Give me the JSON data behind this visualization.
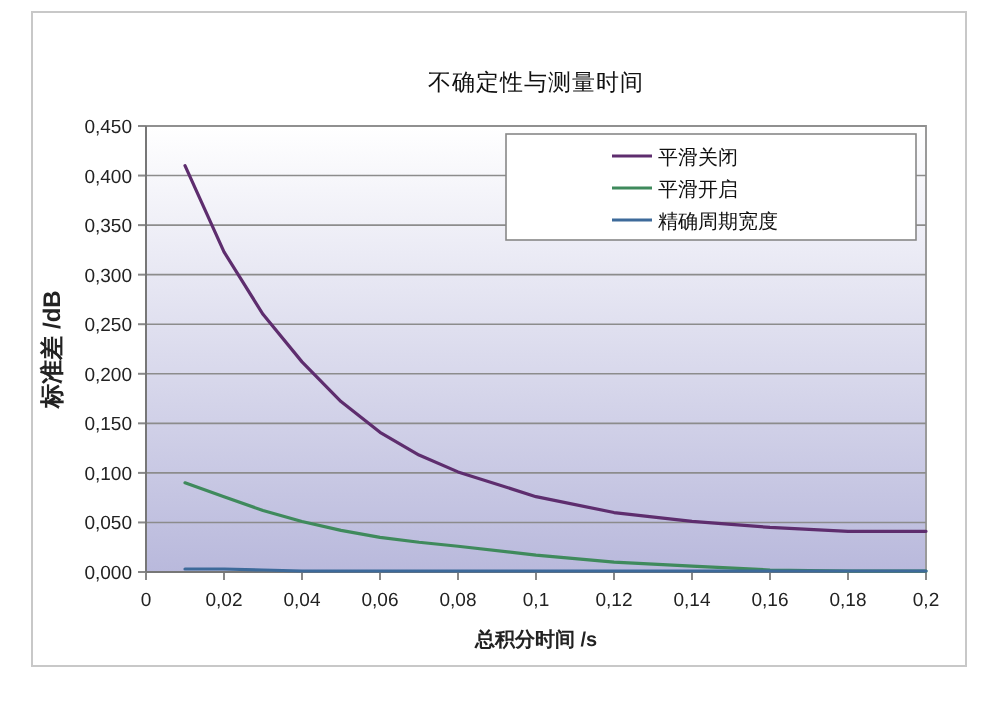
{
  "chart_data": {
    "type": "line",
    "title": "不确定性与测量时间",
    "xlabel": "总积分时间 /s",
    "ylabel": "标准差 /dB",
    "xlim": [
      0,
      0.2
    ],
    "xticks": [
      {
        "value": 0,
        "label": "0"
      },
      {
        "value": 0.02,
        "label": "0,02"
      },
      {
        "value": 0.04,
        "label": "0,04"
      },
      {
        "value": 0.06,
        "label": "0,06"
      },
      {
        "value": 0.08,
        "label": "0,08"
      },
      {
        "value": 0.1,
        "label": "0,1"
      },
      {
        "value": 0.12,
        "label": "0,12"
      },
      {
        "value": 0.14,
        "label": "0,14"
      },
      {
        "value": 0.16,
        "label": "0,16"
      },
      {
        "value": 0.18,
        "label": "0,18"
      },
      {
        "value": 0.2,
        "label": "0,2"
      }
    ],
    "ylim": [
      0,
      0.45
    ],
    "yticks": [
      {
        "value": 0,
        "label": "0,000"
      },
      {
        "value": 0.05,
        "label": "0,050"
      },
      {
        "value": 0.1,
        "label": "0,100"
      },
      {
        "value": 0.15,
        "label": "0,150"
      },
      {
        "value": 0.2,
        "label": "0,200"
      },
      {
        "value": 0.25,
        "label": "0,250"
      },
      {
        "value": 0.3,
        "label": "0,300"
      },
      {
        "value": 0.35,
        "label": "0,350"
      },
      {
        "value": 0.4,
        "label": "0,400"
      },
      {
        "value": 0.45,
        "label": "0,450"
      }
    ],
    "grid": "y",
    "legend": "top right",
    "marker": "none",
    "line_style": "solid",
    "x": [
      0.01,
      0.02,
      0.03,
      0.04,
      0.05,
      0.06,
      0.07,
      0.08,
      0.1,
      0.12,
      0.14,
      0.16,
      0.18,
      0.2
    ],
    "series": [
      {
        "name": "平滑关闭",
        "color": "#5e2d6e",
        "values": [
          0.41,
          0.323,
          0.26,
          0.212,
          0.172,
          0.141,
          0.118,
          0.101,
          0.076,
          0.06,
          0.051,
          0.045,
          0.041,
          0.041
        ]
      },
      {
        "name": "平滑开启",
        "color": "#3f8a5c",
        "values": [
          0.09,
          0.076,
          0.062,
          0.051,
          0.042,
          0.035,
          0.03,
          0.026,
          0.017,
          0.01,
          0.006,
          0.002,
          0.001,
          0.001
        ]
      },
      {
        "name": "精确周期宽度",
        "color": "#3d6a9a",
        "values": [
          0.003,
          0.003,
          0.002,
          0.001,
          0.001,
          0.001,
          0.001,
          0.001,
          0.001,
          0.001,
          0.001,
          0.001,
          0.001,
          0.001
        ]
      }
    ]
  }
}
